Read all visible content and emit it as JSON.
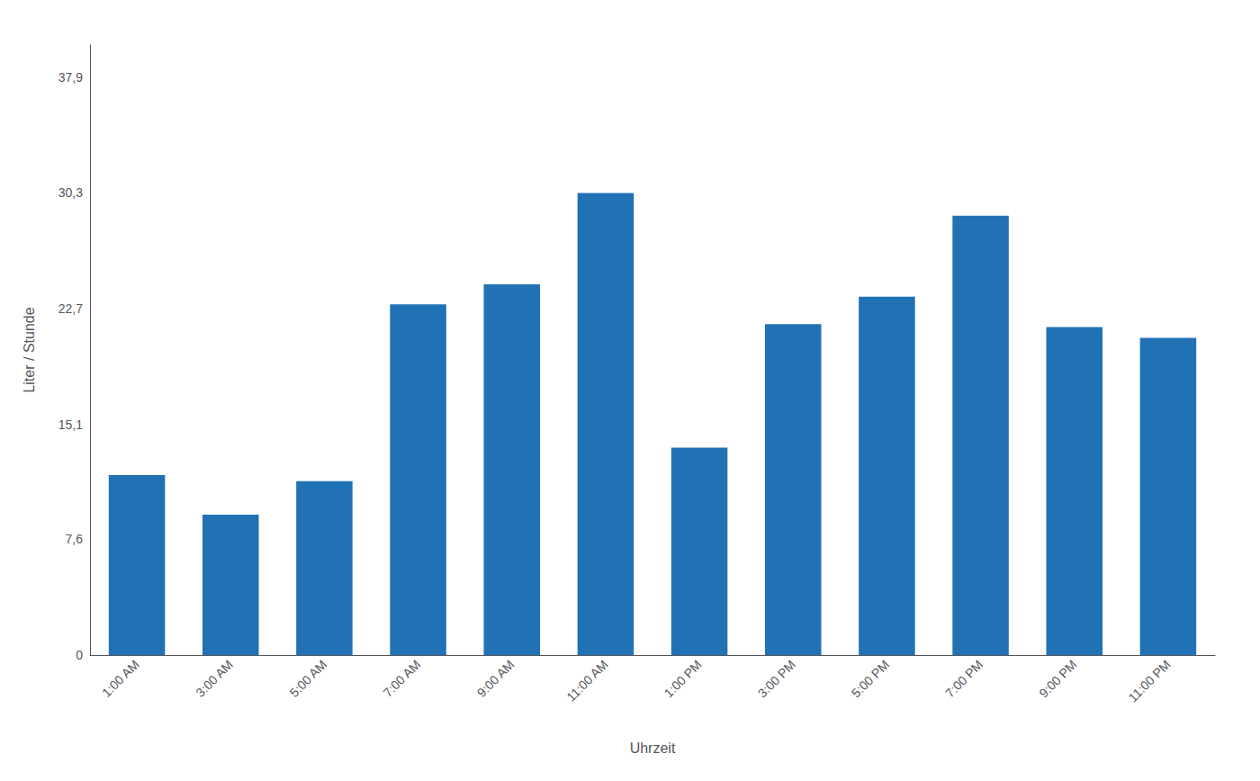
{
  "chart_data": {
    "type": "bar",
    "categories": [
      "1:00 AM",
      "3:00 AM",
      "5:00 AM",
      "7:00 AM",
      "9:00 AM",
      "11:00 AM",
      "1:00 PM",
      "3:00 PM",
      "5:00 PM",
      "7:00 PM",
      "9:00 PM",
      "11:00 PM"
    ],
    "values": [
      11.8,
      9.2,
      11.4,
      23.0,
      24.3,
      30.3,
      13.6,
      21.7,
      23.5,
      28.8,
      21.5,
      20.8
    ],
    "color": "#2171b5",
    "xlabel": "Uhrzeit",
    "ylabel": "Liter / Stunde",
    "ylim": [
      0,
      40.0
    ],
    "yticks": [
      0,
      {
        "value": 7.6,
        "label": "7,6"
      },
      {
        "value": 15.1,
        "label": "15,1"
      },
      {
        "value": 22.7,
        "label": "22,7"
      },
      {
        "value": 30.3,
        "label": "30,3"
      },
      {
        "value": 37.9,
        "label": "37,9"
      }
    ],
    "grid": false
  }
}
